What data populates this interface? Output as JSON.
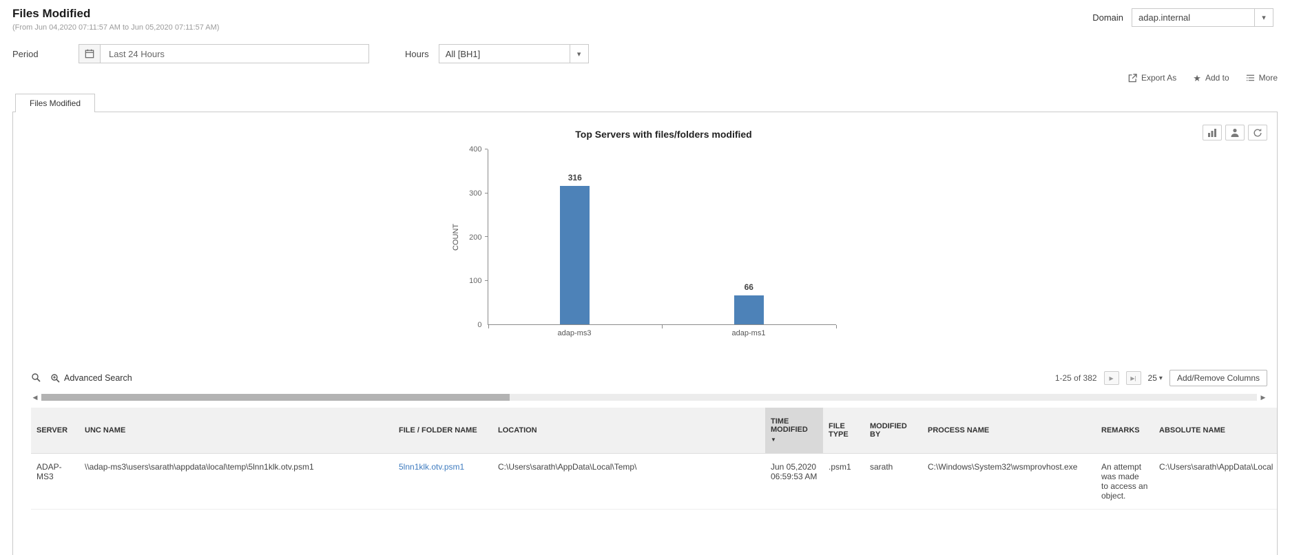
{
  "header": {
    "title": "Files Modified",
    "subtitle": "(From Jun 04,2020 07:11:57 AM to Jun 05,2020 07:11:57 AM)",
    "domain_label": "Domain",
    "domain_value": "adap.internal"
  },
  "filters": {
    "period_label": "Period",
    "period_value": "Last 24 Hours",
    "hours_label": "Hours",
    "hours_value": "All [BH1]"
  },
  "actions": {
    "export": "Export As",
    "add_to": "Add to",
    "more": "More"
  },
  "tabs": [
    {
      "label": "Files Modified",
      "active": true
    }
  ],
  "chart_data": {
    "type": "bar",
    "title": "Top Servers with files/folders modified",
    "categories": [
      "adap-ms3",
      "adap-ms1"
    ],
    "values": [
      316,
      66
    ],
    "xlabel": "",
    "ylabel": "COUNT",
    "ylim": [
      0,
      400
    ],
    "yticks": [
      0,
      100,
      200,
      300,
      400
    ],
    "bar_color": "#4d82b8",
    "grid": false,
    "data_labels": true,
    "legend": "none"
  },
  "table": {
    "toolbar": {
      "advanced_search": "Advanced Search",
      "pagination": "1-25 of 382",
      "page_size": "25",
      "add_remove_columns": "Add/Remove Columns"
    },
    "columns": [
      "SERVER",
      "UNC NAME",
      "FILE / FOLDER NAME",
      "LOCATION",
      "TIME MODIFIED",
      "FILE TYPE",
      "MODIFIED BY",
      "PROCESS NAME",
      "REMARKS",
      "ABSOLUTE NAME"
    ],
    "sorted_column": "TIME MODIFIED",
    "sort_direction": "desc",
    "rows": [
      {
        "server": "ADAP-MS3",
        "unc_name": "\\\\adap-ms3\\users\\sarath\\appdata\\local\\temp\\5lnn1klk.otv.psm1",
        "file_folder_name": "5lnn1klk.otv.psm1",
        "location": "C:\\Users\\sarath\\AppData\\Local\\Temp\\",
        "time_modified": "Jun 05,2020 06:59:53 AM",
        "file_type": ".psm1",
        "modified_by": "sarath",
        "process_name": "C:\\Windows\\System32\\wsmprovhost.exe",
        "remarks": "An attempt was made to access an object.",
        "absolute_name": "C:\\Users\\sarath\\AppData\\Local"
      }
    ]
  },
  "icons": {
    "star": "★",
    "caret_down": "▾",
    "next_page": "▶",
    "last_page": "▶|",
    "scroll_left": "◀",
    "scroll_right": "▶",
    "sort_desc": "▼"
  },
  "colors": {
    "bar": "#4d82b8",
    "link": "#3e7bbf"
  }
}
